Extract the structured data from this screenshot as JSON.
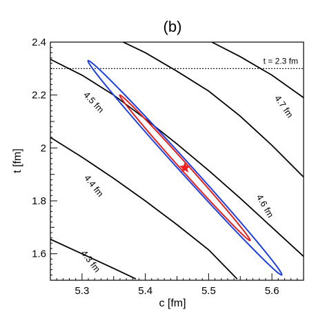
{
  "chart_data": {
    "type": "line",
    "title": "(b)",
    "xlabel": "c [fm]",
    "ylabel": "t [fm]",
    "xlim": [
      5.25,
      5.65
    ],
    "ylim": [
      1.5,
      2.4
    ],
    "x_ticks": [
      {
        "value": 5.3,
        "label": "5.3"
      },
      {
        "value": 5.4,
        "label": "5.4"
      },
      {
        "value": 5.5,
        "label": "5.5"
      },
      {
        "value": 5.6,
        "label": "5.6"
      }
    ],
    "y_ticks": [
      {
        "value": 1.6,
        "label": "1.6"
      },
      {
        "value": 1.8,
        "label": "1.8"
      },
      {
        "value": 2.0,
        "label": "2"
      },
      {
        "value": 2.2,
        "label": "2.2"
      },
      {
        "value": 2.4,
        "label": "2.4"
      }
    ],
    "grid": false,
    "contours": [
      {
        "label": "4.3 fm",
        "points": [
          [
            5.25,
            1.655
          ],
          [
            5.3,
            1.6
          ],
          [
            5.35,
            1.545
          ],
          [
            5.385,
            1.505
          ]
        ],
        "label_at": [
          5.31,
          1.565
        ],
        "label_angle": 52
      },
      {
        "label": "4.4 fm",
        "points": [
          [
            5.25,
            2.04
          ],
          [
            5.3,
            1.965
          ],
          [
            5.35,
            1.885
          ],
          [
            5.4,
            1.8
          ],
          [
            5.45,
            1.71
          ],
          [
            5.5,
            1.615
          ],
          [
            5.545,
            1.505
          ]
        ],
        "label_at": [
          5.315,
          1.85
        ],
        "label_angle": 52
      },
      {
        "label": "4.5 fm",
        "points": [
          [
            5.25,
            2.335
          ],
          [
            5.3,
            2.275
          ],
          [
            5.35,
            2.2
          ],
          [
            5.4,
            2.11
          ],
          [
            5.45,
            2.015
          ],
          [
            5.5,
            1.915
          ],
          [
            5.55,
            1.81
          ],
          [
            5.6,
            1.7
          ],
          [
            5.65,
            1.59
          ]
        ],
        "label_at": [
          5.315,
          2.165
        ],
        "label_angle": 47
      },
      {
        "label": "4.6 fm",
        "points": [
          [
            5.365,
            2.4
          ],
          [
            5.4,
            2.36
          ],
          [
            5.45,
            2.29
          ],
          [
            5.5,
            2.215
          ],
          [
            5.55,
            2.12
          ],
          [
            5.6,
            2.01
          ],
          [
            5.65,
            1.89
          ]
        ],
        "label_at": [
          5.585,
          1.775
        ],
        "label_angle": 60
      },
      {
        "label": "4.7 fm",
        "points": [
          [
            5.505,
            2.4
          ],
          [
            5.55,
            2.345
          ],
          [
            5.6,
            2.275
          ],
          [
            5.65,
            2.19
          ]
        ],
        "label_at": [
          5.615,
          2.15
        ],
        "label_angle": 55
      }
    ],
    "reference_line": {
      "y": 2.3,
      "label": "t = 2.3 fm"
    },
    "ellipses": [
      {
        "color": "#1f3fe0",
        "center": [
          5.4625,
          1.925
        ],
        "semi_major_x": 0.153,
        "semi_major_y": 0.405,
        "minor_half_width": 0.009
      },
      {
        "color": "#e01f1f",
        "center": [
          5.4625,
          1.925
        ],
        "semi_major_x": 0.103,
        "semi_major_y": 0.275,
        "minor_half_width": 0.006
      }
    ],
    "marker": {
      "type": "star",
      "color": "#ee2020",
      "x": 5.4625,
      "y": 1.925
    }
  }
}
